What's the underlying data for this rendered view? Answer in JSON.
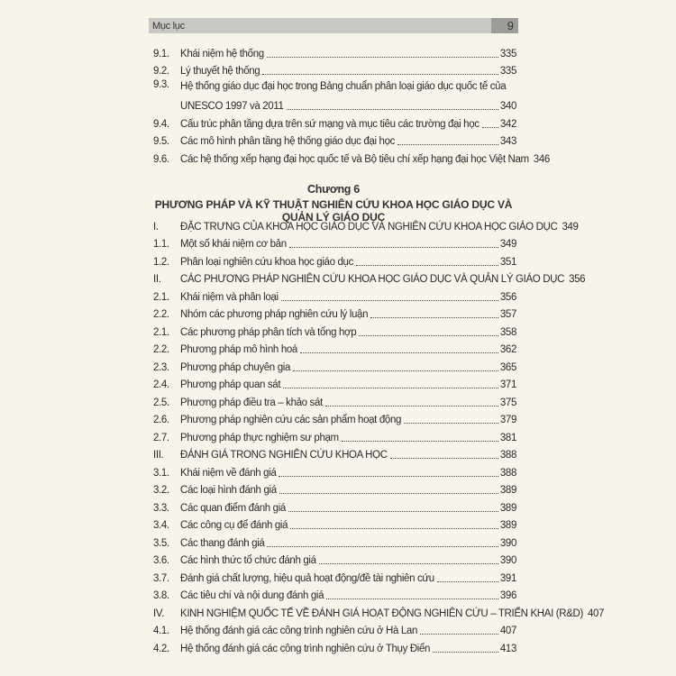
{
  "header": {
    "title": "Mục lục",
    "page_number": "9"
  },
  "top_entries": [
    {
      "num": "9.1.",
      "title": "Khái niệm hệ thống",
      "page": "335"
    },
    {
      "num": "9.2.",
      "title": "Lý thuyết hệ thống",
      "page": "335"
    },
    {
      "num": "9.3.",
      "title": "Hệ thống giáo dục đại học trong Bảng chuẩn phân loại giáo dục quốc tế của",
      "title_line2": "UNESCO 1997 và 2011",
      "page": "340"
    },
    {
      "num": "9.4.",
      "title": "Cấu trúc phân tầng dựa trên sứ mạng và mục tiêu các trường đại học",
      "page": "342"
    },
    {
      "num": "9.5.",
      "title": "Các mô hình phân tầng hệ thống giáo dục đại học",
      "page": "343"
    },
    {
      "num": "9.6.",
      "title": "Các hệ thống xếp hạng đại học quốc tế và Bộ tiêu chí xếp hạng đại học Việt Nam",
      "page": "346"
    }
  ],
  "chapter": {
    "label": "Chương 6",
    "title": "PHƯƠNG PHÁP VÀ KỸ THUẬT NGHIÊN CỨU KHOA HỌC GIÁO DỤC VÀ QUẢN LÝ GIÁO DỤC"
  },
  "entries": [
    {
      "num": "I.",
      "title": "ĐẶC TRƯNG CỦA KHOA HỌC GIÁO DỤC VÀ NGHIÊN CỨU KHOA HỌC GIÁO DỤC",
      "page": "349"
    },
    {
      "num": "1.1.",
      "title": "Một số khái niệm cơ bản",
      "page": "349"
    },
    {
      "num": "1.2.",
      "title": "Phân loại nghiên cứu khoa học giáo dục",
      "page": "351"
    },
    {
      "num": "II.",
      "title": "CÁC PHƯƠNG PHÁP NGHIÊN CỨU KHOA HỌC GIÁO DỤC VÀ QUẢN LÝ GIÁO DỤC",
      "page": "356"
    },
    {
      "num": "2.1.",
      "title": "Khái niệm và phân loại",
      "page": "356"
    },
    {
      "num": "2.2.",
      "title": "Nhóm các phương pháp nghiên cứu lý luận",
      "page": "357"
    },
    {
      "num": "2.1.",
      "title": "Các phương pháp phân tích và tổng hợp",
      "page": "358"
    },
    {
      "num": "2.2.",
      "title": "Phương pháp mô hình hoá",
      "page": "362"
    },
    {
      "num": "2.3.",
      "title": "Phương pháp chuyên gia",
      "page": "365"
    },
    {
      "num": "2.4.",
      "title": "Phương pháp quan sát",
      "page": "371"
    },
    {
      "num": "2.5.",
      "title": "Phương pháp điều tra – khảo sát",
      "page": "375"
    },
    {
      "num": "2.6.",
      "title": "Phương pháp nghiên cứu các sản phẩm hoạt động",
      "page": "379"
    },
    {
      "num": "2.7.",
      "title": "Phương pháp thực nghiệm sư phạm",
      "page": "381"
    },
    {
      "num": "III.",
      "title": "ĐÁNH GIÁ TRONG NGHIÊN CỨU KHOA HỌC",
      "page": "388"
    },
    {
      "num": "3.1.",
      "title": "Khái niệm về đánh giá",
      "page": "388"
    },
    {
      "num": "3.2.",
      "title": "Các loại hình đánh giá",
      "page": "389"
    },
    {
      "num": "3.3.",
      "title": "Các quan điểm đánh giá",
      "page": "389"
    },
    {
      "num": "3.4.",
      "title": "Các công cụ để đánh giá",
      "page": "389"
    },
    {
      "num": "3.5.",
      "title": "Các thang đánh giá",
      "page": "390"
    },
    {
      "num": "3.6.",
      "title": "Các hình thức tổ chức đánh giá",
      "page": "390"
    },
    {
      "num": "3.7.",
      "title": "Đánh giá chất lượng, hiệu quả hoạt động/đề tài nghiên cứu",
      "page": "391"
    },
    {
      "num": "3.8.",
      "title": "Các tiêu chí và nội dung đánh giá",
      "page": "396"
    },
    {
      "num": "IV.",
      "title": "KINH NGHIỆM QUỐC TẾ VỀ ĐÁNH GIÁ HOẠT ĐỘNG NGHIÊN CỨU – TRIỂN KHAI (R&D)",
      "page": "407"
    },
    {
      "num": "4.1.",
      "title": "Hệ thống đánh giá các công trình nghiên cứu ở Hà Lan",
      "page": "407"
    },
    {
      "num": "4.2.",
      "title": "Hệ thống đánh giá các công trình nghiên cứu ở Thụy Điển",
      "page": "413"
    }
  ]
}
